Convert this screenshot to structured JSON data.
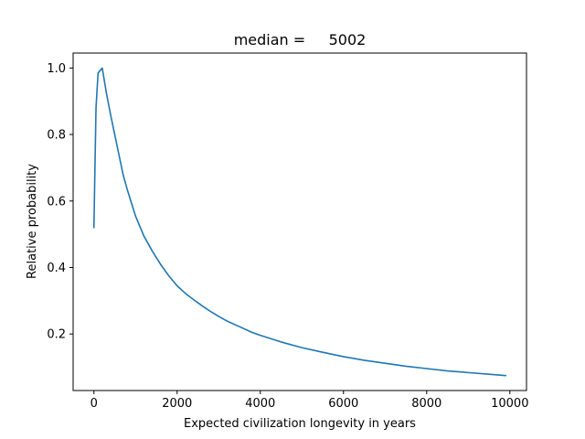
{
  "chart_data": {
    "type": "line",
    "title": "median =     5002",
    "xlabel": "Expected civilization longevity in years",
    "ylabel": "Relative probability",
    "xlim": [
      -500,
      10400
    ],
    "ylim": [
      0.03,
      1.045
    ],
    "xticks": [
      0,
      2000,
      4000,
      6000,
      8000,
      10000
    ],
    "xtick_labels": [
      "0",
      "2000",
      "4000",
      "6000",
      "8000",
      "10000"
    ],
    "yticks": [
      0.2,
      0.4,
      0.6,
      0.8,
      1.0
    ],
    "ytick_labels": [
      "0.2",
      "0.4",
      "0.6",
      "0.8",
      "1.0"
    ],
    "grid": false,
    "line_color": "#1f77b4",
    "series": [
      {
        "x": [
          0,
          50,
          100,
          200,
          300,
          400,
          500,
          600,
          700,
          800,
          900,
          1000,
          1200,
          1400,
          1600,
          1800,
          2000,
          2200,
          2400,
          2600,
          2800,
          3000,
          3200,
          3500,
          3800,
          4000,
          4500,
          5000,
          5500,
          6000,
          6500,
          7000,
          7500,
          8000,
          8500,
          9000,
          9500,
          9900
        ],
        "y": [
          0.52,
          0.88,
          0.985,
          1.0,
          0.925,
          0.86,
          0.8,
          0.74,
          0.68,
          0.635,
          0.595,
          0.555,
          0.495,
          0.45,
          0.41,
          0.375,
          0.345,
          0.322,
          0.303,
          0.285,
          0.268,
          0.253,
          0.239,
          0.222,
          0.205,
          0.196,
          0.176,
          0.159,
          0.145,
          0.132,
          0.121,
          0.112,
          0.103,
          0.096,
          0.089,
          0.084,
          0.079,
          0.075
        ]
      }
    ]
  }
}
